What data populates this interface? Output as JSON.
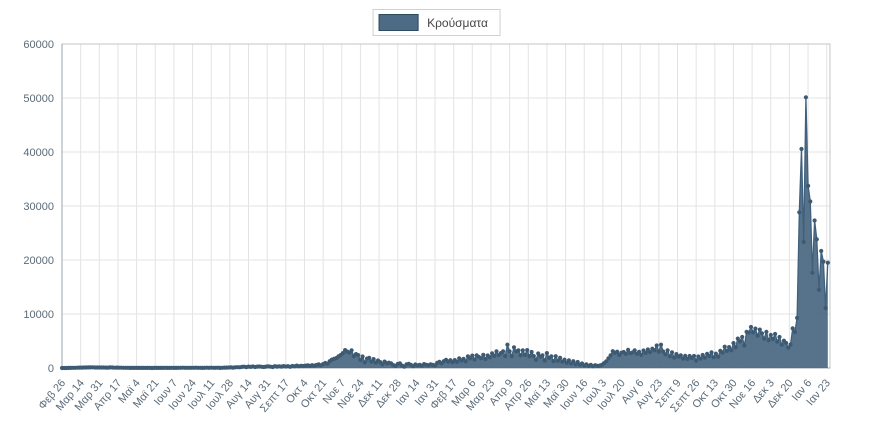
{
  "legend": {
    "label": "Κρούσματα"
  },
  "chart_data": {
    "type": "area",
    "title": "",
    "series_name": "Κρούσματα",
    "legend_position": "top-center",
    "grid": true,
    "colors": {
      "line": "#41607c",
      "fill": "#4e6b85",
      "marker": "#3d5a73",
      "grid": "#e3e3e3",
      "border": "#c2c7cc",
      "axis": "#9aa4ab",
      "tick_text": "#5b6b78"
    },
    "ylim": [
      0,
      60000
    ],
    "y_ticks": [
      0,
      10000,
      20000,
      30000,
      40000,
      50000,
      60000
    ],
    "y_tick_labels": [
      "0",
      "10000",
      "20000",
      "30000",
      "40000",
      "50000",
      "60000"
    ],
    "x_domain_days": [
      0,
      700
    ],
    "sample_interval_days": 2,
    "x_tick_days": [
      0,
      17,
      34,
      51,
      68,
      85,
      102,
      119,
      136,
      153,
      170,
      187,
      204,
      221,
      238,
      255,
      272,
      289,
      306,
      323,
      340,
      357,
      374,
      391,
      408,
      425,
      442,
      459,
      476,
      493,
      510,
      527,
      544,
      561,
      578,
      595,
      612,
      629,
      646,
      663,
      680,
      697
    ],
    "x_tick_labels": [
      "Φεβ 26",
      "Μαρ 14",
      "Μαρ 31",
      "Απρ 17",
      "Μαϊ 4",
      "Μαϊ 21",
      "Ιουν 7",
      "Ιουν 24",
      "Ιουλ 11",
      "Ιουλ 28",
      "Αυγ 14",
      "Αυγ 31",
      "Σεπτ 17",
      "Οκτ 4",
      "Οκτ 21",
      "Νοε 7",
      "Νοε 24",
      "Δεκ 11",
      "Δεκ 28",
      "Ιαν 14",
      "Ιαν 31",
      "Φεβ 17",
      "Μαρ 6",
      "Μαρ 23",
      "Απρ 9",
      "Απρ 26",
      "Μαϊ 13",
      "Μαϊ 30",
      "Ιουν 16",
      "Ιουλ 3",
      "Ιουλ 20",
      "Αυγ 6",
      "Αυγ 23",
      "Σεπτ 9",
      "Σεπτ 26",
      "Οκτ 13",
      "Οκτ 30",
      "Νοε 16",
      "Δεκ 3",
      "Δεκ 20",
      "Ιαν 6",
      "Ιαν 23"
    ],
    "values": [
      1,
      4,
      7,
      10,
      21,
      32,
      46,
      62,
      74,
      82,
      90,
      95,
      102,
      110,
      129,
      101,
      97,
      93,
      88,
      95,
      77,
      68,
      102,
      84,
      56,
      71,
      53,
      48,
      41,
      35,
      28,
      22,
      17,
      26,
      19,
      12,
      16,
      21,
      14,
      18,
      12,
      9,
      15,
      11,
      19,
      23,
      17,
      28,
      14,
      22,
      31,
      18,
      27,
      45,
      33,
      52,
      39,
      28,
      43,
      36,
      29,
      47,
      34,
      41,
      26,
      33,
      52,
      38,
      47,
      43,
      35,
      58,
      27,
      39,
      65,
      78,
      96,
      110,
      75,
      121,
      153,
      124,
      207,
      235,
      168,
      251,
      212,
      284,
      176,
      259,
      284,
      225,
      177,
      268,
      310,
      241,
      194,
      339,
      268,
      312,
      250,
      358,
      286,
      341,
      218,
      367,
      312,
      453,
      342,
      411,
      363,
      436,
      482,
      391,
      524,
      438,
      562,
      667,
      508,
      715,
      935,
      790,
      1259,
      1547,
      1690,
      1830,
      2166,
      2401,
      2752,
      3313,
      3038,
      2835,
      3270,
      2198,
      2581,
      2384,
      1498,
      2135,
      1044,
      1747,
      1882,
      1194,
      1652,
      998,
      1383,
      1090,
      693,
      1194,
      853,
      981,
      867,
      544,
      362,
      732,
      858,
      451,
      263,
      691,
      784,
      565,
      334,
      642,
      508,
      566,
      439,
      721,
      598,
      512,
      682,
      574,
      484,
      936,
      1151,
      874,
      1261,
      1526,
      1193,
      1438,
      1068,
      1460,
      1156,
      1794,
      1398,
      1686,
      1239,
      2147,
      1783,
      2301,
      1574,
      2353,
      2034,
      1807,
      2452,
      1669,
      2308,
      1958,
      2702,
      2233,
      3067,
      2379,
      2758,
      3080,
      2190,
      4309,
      3070,
      2198,
      3833,
      3065,
      3255,
      2353,
      3261,
      2435,
      3313,
      2187,
      2972,
      2204,
      1516,
      2687,
      2104,
      2346,
      1384,
      2752,
      1847,
      2168,
      1251,
      2184,
      1335,
      1883,
      1172,
      1546,
      968,
      1420,
      833,
      1253,
      677,
      1102,
      586,
      841,
      462,
      673,
      389,
      575,
      334,
      512,
      398,
      448,
      584,
      882,
      1245,
      1797,
      2332,
      3109,
      2794,
      3020,
      2405,
      2834,
      2972,
      2604,
      3376,
      2738,
      2874,
      3273,
      2611,
      3002,
      2441,
      3241,
      2795,
      3423,
      2919,
      3581,
      3273,
      4158,
      3041,
      4309,
      3054,
      2529,
      3274,
      2172,
      2880,
      1943,
      2572,
      2108,
      2341,
      1738,
      2252,
      1662,
      2215,
      1858,
      2227,
      1391,
      2125,
      1716,
      2402,
      1914,
      2636,
      2197,
      2881,
      1976,
      2654,
      2078,
      3193,
      2829,
      3937,
      3162,
      3874,
      3274,
      4608,
      3842,
      5449,
      4928,
      5748,
      4165,
      6682,
      6565,
      7593,
      6594,
      7288,
      5987,
      7106,
      6428,
      5449,
      6677,
      5122,
      6106,
      5379,
      6298,
      4896,
      5736,
      4322,
      5051,
      4621,
      3780,
      4340,
      7335,
      6667,
      9284,
      28828,
      40560,
      23340,
      50126,
      33716,
      30828,
      17633,
      27320,
      23833,
      14475,
      21661,
      19712,
      11094,
      19507
    ]
  }
}
